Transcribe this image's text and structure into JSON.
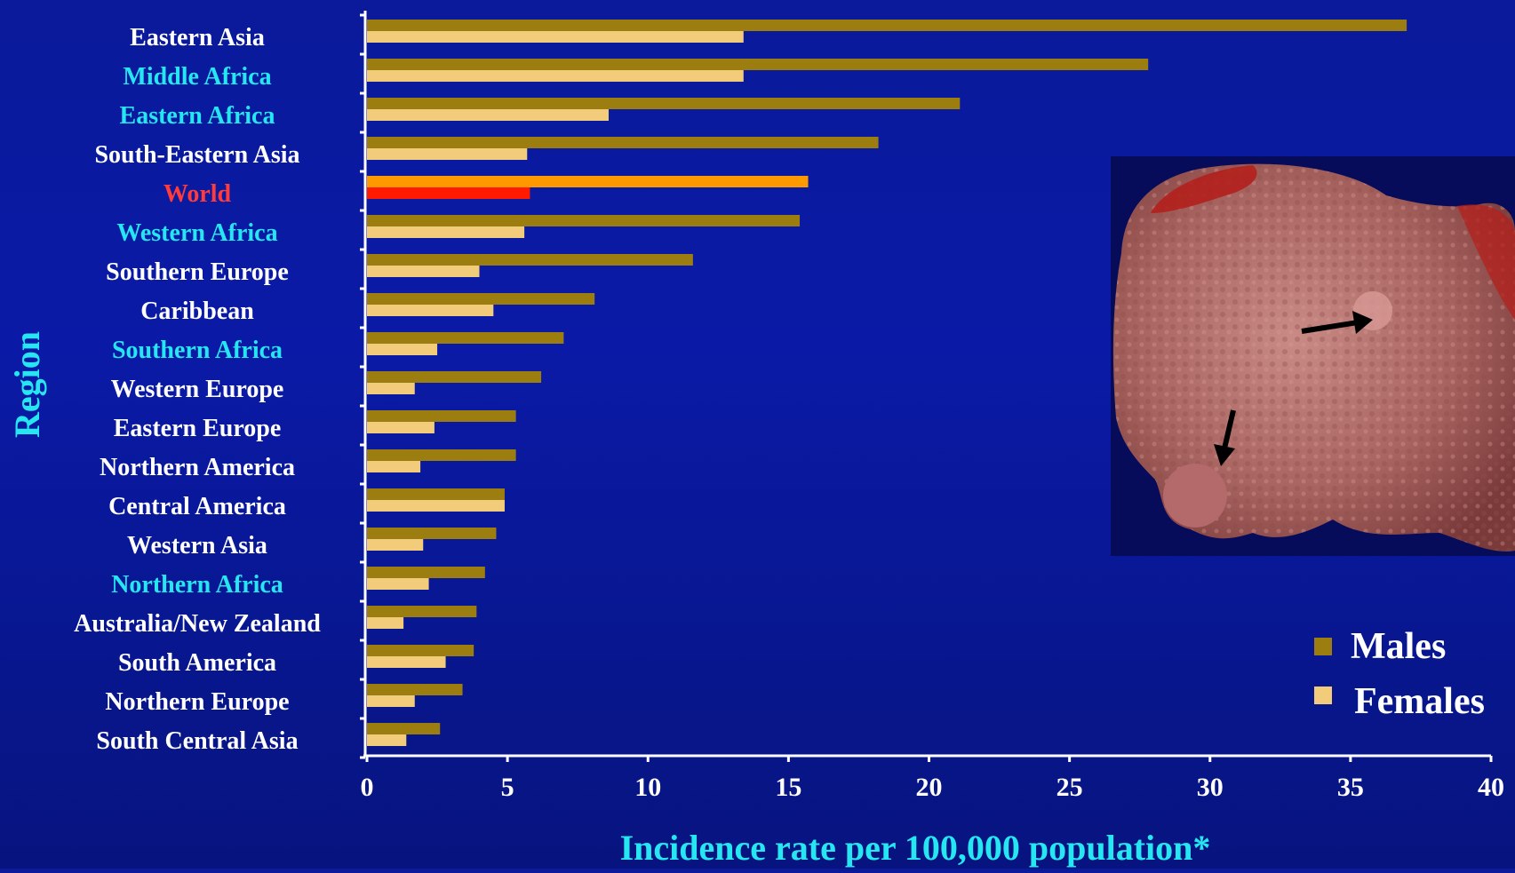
{
  "chart_data": {
    "type": "bar",
    "orientation": "horizontal",
    "ylabel": "Region",
    "xlabel": "Incidence rate per 100,000 population*",
    "xlim": [
      0,
      40
    ],
    "xticks": [
      0,
      5,
      10,
      15,
      20,
      25,
      30,
      35,
      40
    ],
    "grid": false,
    "legend_position": "bottom-right",
    "categories": [
      "Eastern Asia",
      "Middle Africa",
      "Eastern Africa",
      "South-Eastern Asia",
      "World",
      "Western Africa",
      "Southern Europe",
      "Caribbean",
      "Southern Africa",
      "Western Europe",
      "Eastern Europe",
      "Northern America",
      "Central America",
      "Western Asia",
      "Northern Africa",
      "Australia/New Zealand",
      "South America",
      "Northern Europe",
      "South Central Asia"
    ],
    "category_label_colors": [
      "#ffffff",
      "#26e6f2",
      "#26e6f2",
      "#ffffff",
      "#ff3b3b",
      "#26e6f2",
      "#ffffff",
      "#ffffff",
      "#26e6f2",
      "#ffffff",
      "#ffffff",
      "#ffffff",
      "#ffffff",
      "#ffffff",
      "#26e6f2",
      "#ffffff",
      "#ffffff",
      "#ffffff",
      "#ffffff"
    ],
    "highlight_category": "World",
    "highlight_colors": {
      "Males": "#ff9900",
      "Females": "#ff1a00"
    },
    "series": [
      {
        "name": "Males",
        "color": "#9c7d10",
        "values": [
          37.0,
          27.8,
          21.1,
          18.2,
          15.7,
          15.4,
          11.6,
          8.1,
          7.0,
          6.2,
          5.3,
          5.3,
          4.9,
          4.6,
          4.2,
          3.9,
          3.8,
          3.4,
          2.6
        ]
      },
      {
        "name": "Females",
        "color": "#f2cc7a",
        "values": [
          13.4,
          13.4,
          8.6,
          5.7,
          5.8,
          5.6,
          4.0,
          4.5,
          2.5,
          1.7,
          2.4,
          1.9,
          4.9,
          2.0,
          2.2,
          1.3,
          2.8,
          1.7,
          1.4
        ]
      }
    ]
  },
  "inset_image": {
    "description_icon": "liver-specimen-photo"
  }
}
